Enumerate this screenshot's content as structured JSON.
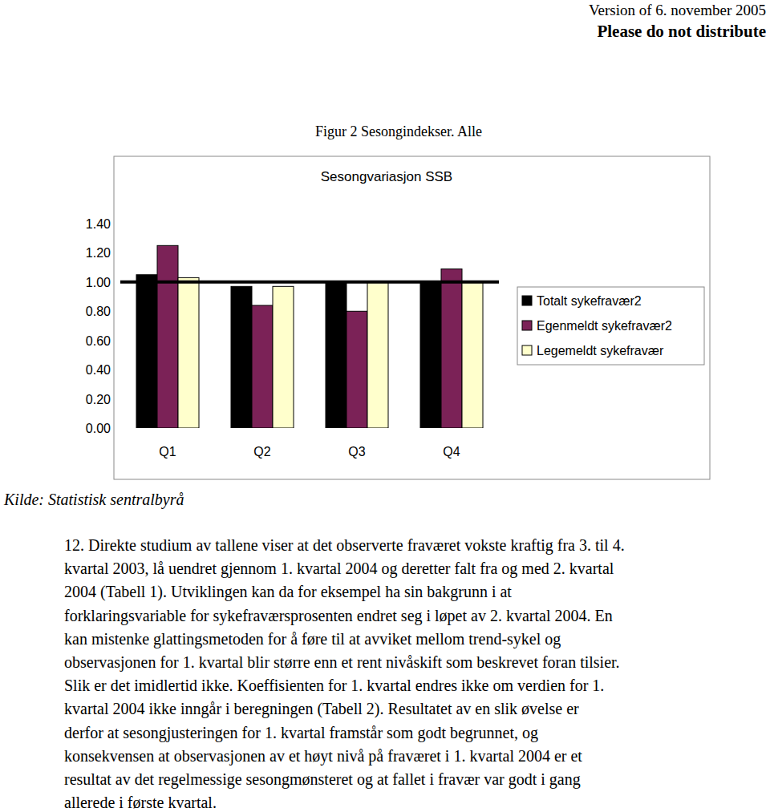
{
  "header": {
    "version": "Version of 6. november 2005",
    "notice": "Please do not distribute"
  },
  "figure": {
    "caption": "Figur 2 Sesongindekser. Alle",
    "source": "Kilde: Statistisk sentralbyrå"
  },
  "chart_data": {
    "type": "bar",
    "title": "Sesongvariasjon SSB",
    "categories": [
      "Q1",
      "Q2",
      "Q3",
      "Q4"
    ],
    "series": [
      {
        "name": "Totalt sykefravær2",
        "color": "#000000",
        "values": [
          1.05,
          0.97,
          1.0,
          1.0
        ]
      },
      {
        "name": "Egenmeldt sykefravær2",
        "color": "#7b2257",
        "values": [
          1.25,
          0.84,
          0.8,
          1.09
        ]
      },
      {
        "name": "Legemeldt sykefravær",
        "color": "#ffffcc",
        "values": [
          1.03,
          0.97,
          1.0,
          1.0
        ]
      },
      {
        "type": "line",
        "color": "#000000",
        "values": [
          1.0,
          1.0,
          1.0,
          1.0
        ]
      }
    ],
    "ylim": [
      0,
      1.4
    ],
    "yticks": [
      {
        "value": 0,
        "label": "0.00"
      },
      {
        "value": 0.2,
        "label": "0.20"
      },
      {
        "value": 0.4,
        "label": "0.40"
      },
      {
        "value": 0.6,
        "label": "0.60"
      },
      {
        "value": 0.8,
        "label": "0.80"
      },
      {
        "value": 1.0,
        "label": "1.00"
      },
      {
        "value": 1.2,
        "label": "1.20"
      },
      {
        "value": 1.4,
        "label": "1.40"
      }
    ],
    "grid": false,
    "legend": "right"
  },
  "paragraph": {
    "lines": [
      "12. Direkte studium av tallene viser at det observerte fraværet vokste kraftig fra 3. til 4.",
      "kvartal 2003, lå uendret gjennom 1. kvartal 2004 og deretter falt fra og med 2. kvartal",
      "2004 (Tabell 1). Utviklingen kan da for eksempel ha sin bakgrunn i at",
      "forklaringsvariable for sykefraværsprosenten endret seg i løpet av 2. kvartal 2004. En",
      "kan mistenke glattingsmetoden for å føre til at avviket mellom trend-sykel og",
      "observasjonen for 1. kvartal blir større enn et rent nivåskift som beskrevet foran tilsier.",
      "Slik er det imidlertid ikke. Koeffisienten for 1. kvartal endres ikke om verdien for 1.",
      "kvartal 2004 ikke inngår i beregningen (Tabell 2). Resultatet av en slik øvelse er",
      "derfor at sesongjusteringen for 1. kvartal framstår som godt begrunnet, og",
      "konsekvensen at observasjonen av et høyt nivå på fraværet i 1. kvartal 2004 er et",
      "resultat av det regelmessige sesongmønsteret og at fallet i fravær var godt i gang",
      "allerede i første kvartal."
    ]
  }
}
